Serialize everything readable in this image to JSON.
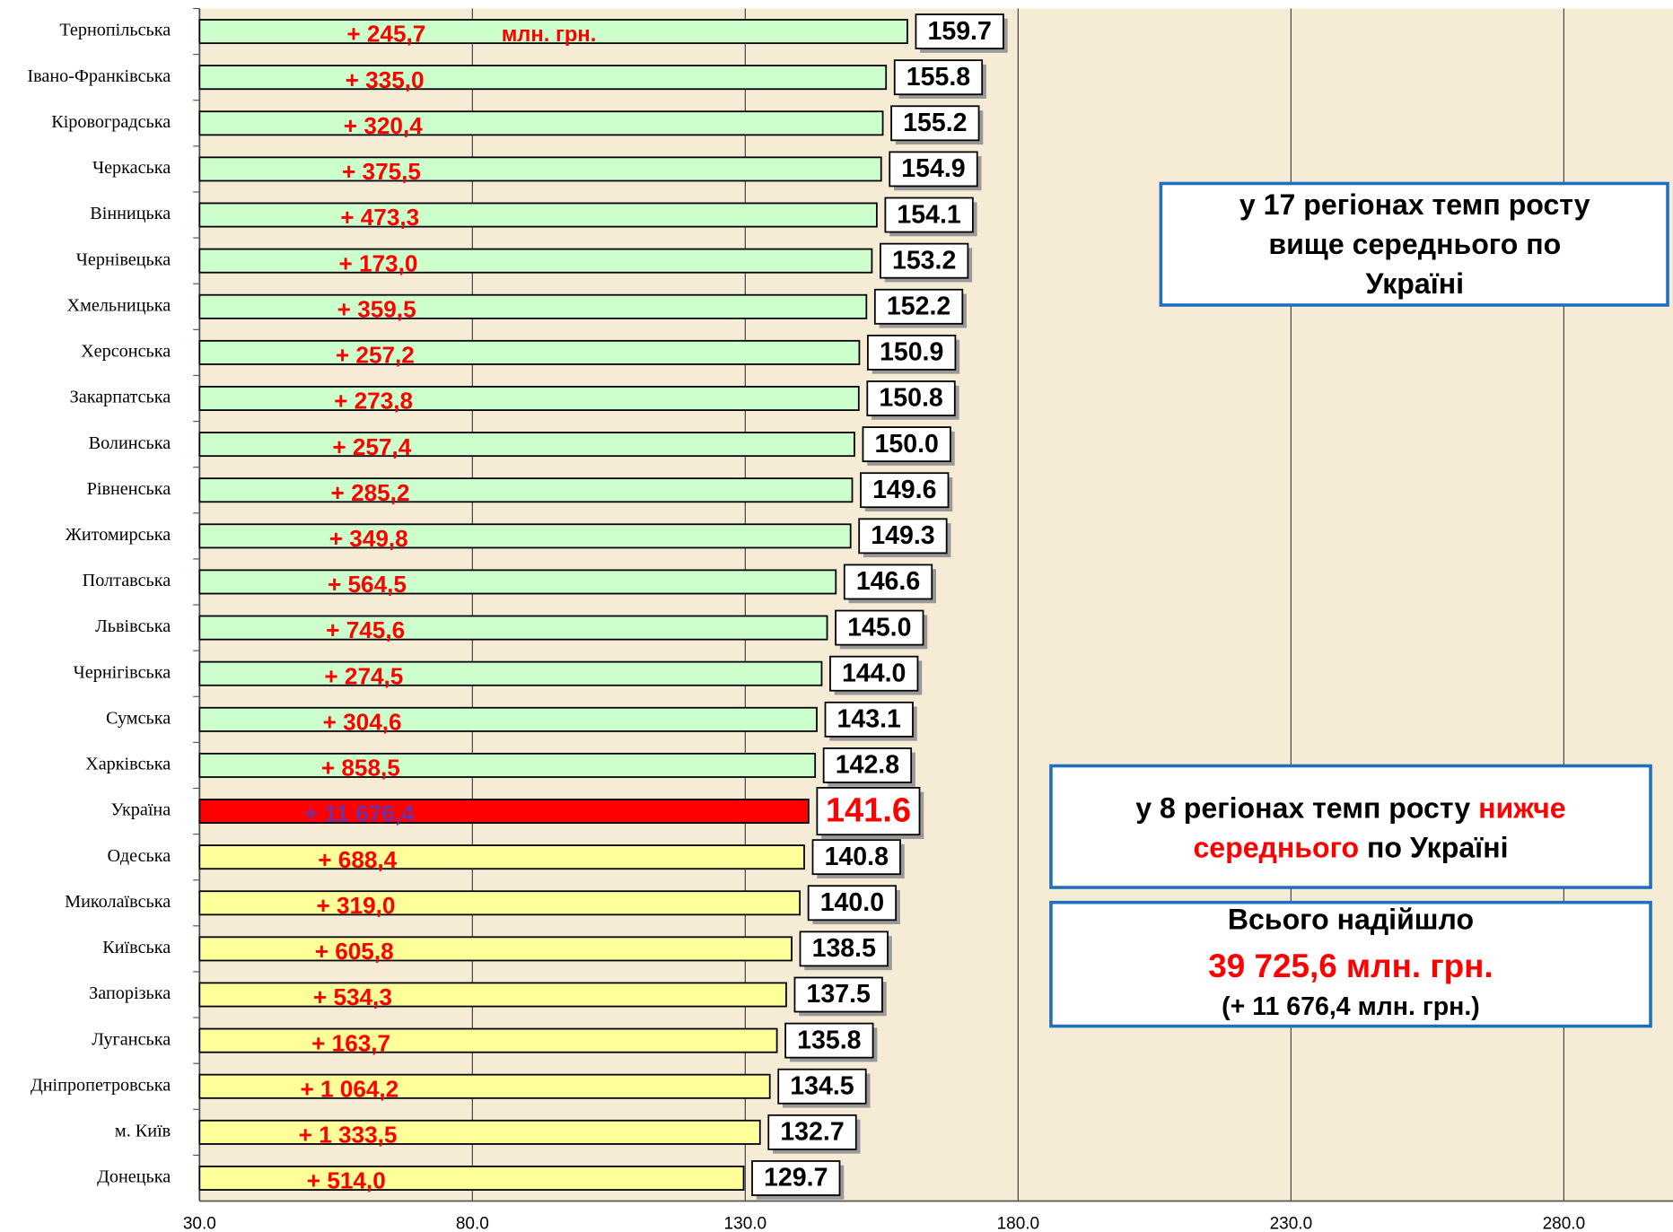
{
  "chart_data": {
    "type": "barh",
    "categories": [
      "Тернопільська",
      "Івано-Франківська",
      "Кіровоградська",
      "Черкаська",
      "Вінницька",
      "Чернівецька",
      "Хмельницька",
      "Херсонська",
      "Закарпатська",
      "Волинська",
      "Рівненська",
      "Житомирська",
      "Полтавська",
      "Львівська",
      "Чернігівська",
      "Сумська",
      "Харківська",
      "Україна",
      "Одеська",
      "Миколаївська",
      "Київська",
      "Запорізька",
      "Луганська",
      "Дніпропетровська",
      "м. Київ",
      "Донецька"
    ],
    "values": [
      159.7,
      155.8,
      155.2,
      154.9,
      154.1,
      153.2,
      152.2,
      150.9,
      150.8,
      150.0,
      149.6,
      149.3,
      146.6,
      145.0,
      144.0,
      143.1,
      142.8,
      141.6,
      140.8,
      140.0,
      138.5,
      137.5,
      135.8,
      134.5,
      132.7,
      129.7
    ],
    "value_labels": [
      "159.7",
      "155.8",
      "155.2",
      "154.9",
      "154.1",
      "153.2",
      "152.2",
      "150.9",
      "150.8",
      "150.0",
      "149.6",
      "149.3",
      "146.6",
      "145.0",
      "144.0",
      "143.1",
      "142.8",
      "141.6",
      "140.8",
      "140.0",
      "138.5",
      "137.5",
      "135.8",
      "134.5",
      "132.7",
      "129.7"
    ],
    "increments": [
      "+ 245,7",
      "+ 335,0",
      "+ 320,4",
      "+ 375,5",
      "+ 473,3",
      "+ 173,0",
      "+ 359,5",
      "+ 257,2",
      "+ 273,8",
      "+ 257,4",
      "+ 285,2",
      "+ 349,8",
      "+ 564,5",
      "+ 745,6",
      "+ 274,5",
      "+ 304,6",
      "+ 858,5",
      "+ 11 676,4",
      "+ 688,4",
      "+ 319,0",
      "+ 605,8",
      "+ 534,3",
      "+ 163,7",
      "+ 1 064,2",
      "+ 1 333,5",
      "+ 514,0"
    ],
    "unit_note": "млн. грн.",
    "colors": [
      "#ccffcc",
      "#ccffcc",
      "#ccffcc",
      "#ccffcc",
      "#ccffcc",
      "#ccffcc",
      "#ccffcc",
      "#ccffcc",
      "#ccffcc",
      "#ccffcc",
      "#ccffcc",
      "#ccffcc",
      "#ccffcc",
      "#ccffcc",
      "#ccffcc",
      "#ccffcc",
      "#ccffcc",
      "#ff0000",
      "#ffff99",
      "#ffff99",
      "#ffff99",
      "#ffff99",
      "#ffff99",
      "#ffff99",
      "#ffff99",
      "#ffff99"
    ],
    "xlim": [
      30,
      300
    ],
    "xticks": [
      {
        "value": 30,
        "label": "30.0"
      },
      {
        "value": 80,
        "label": "80.0"
      },
      {
        "value": 130,
        "label": "130.0"
      },
      {
        "value": 180,
        "label": "180.0"
      },
      {
        "value": 230,
        "label": "230.0"
      },
      {
        "value": 280,
        "label": "280.0"
      }
    ],
    "grid": true,
    "annotations": {
      "box1": [
        "у 17 регіонах темп росту",
        "вище середнього по",
        "Україні"
      ],
      "box2": [
        [
          "у 8 регіонах темп росту ",
          "нижче"
        ],
        [
          "середнього",
          " по Україні"
        ]
      ],
      "box3": [
        "Всього надійшло",
        "39 725,6 млн. грн.",
        "(+ 11 676,4 млн. грн.)"
      ]
    }
  }
}
